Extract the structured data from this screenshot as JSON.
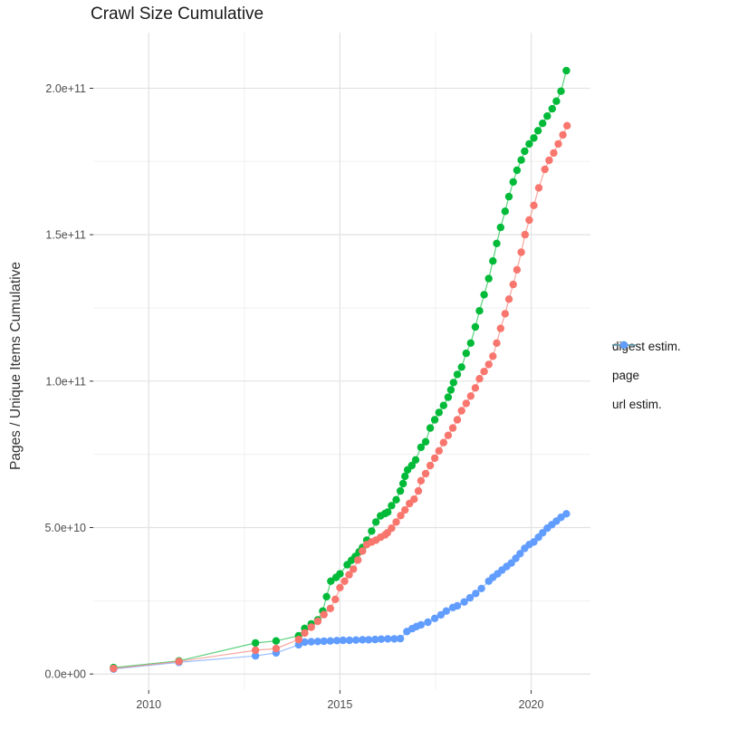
{
  "chart_data": {
    "type": "line",
    "title": "Crawl Size Cumulative",
    "legend_position": "right",
    "x_axis": {
      "ticks": [
        {
          "v": 2010,
          "label": "2010"
        },
        {
          "v": 2015,
          "label": "2015"
        },
        {
          "v": 2020,
          "label": "2020"
        }
      ],
      "minor": [
        2012.5,
        2017.5
      ],
      "range": [
        2008.55,
        2021.55
      ]
    },
    "y_axis": {
      "title": "Pages / Unique Items Cumulative",
      "unit_multiplier": 1000000000.0,
      "ticks": [
        {
          "v": 0,
          "label": "0.0e+00"
        },
        {
          "v": 50,
          "label": "5.0e+10"
        },
        {
          "v": 100,
          "label": "1.0e+11"
        },
        {
          "v": 150,
          "label": "1.5e+11"
        },
        {
          "v": 200,
          "label": "2.0e+11"
        }
      ],
      "minor": [
        25,
        75,
        125,
        175
      ],
      "range": [
        -5.5,
        219
      ]
    },
    "series": [
      {
        "name": "digest estim.",
        "color": "#F8766D",
        "points": [
          [
            2009.08,
            1.9
          ],
          [
            2010.79,
            4.3
          ],
          [
            2012.79,
            8.1
          ],
          [
            2013.33,
            8.7
          ],
          [
            2013.92,
            11.8
          ],
          [
            2014.08,
            14.0
          ],
          [
            2014.25,
            16.0
          ],
          [
            2014.42,
            18.0
          ],
          [
            2014.58,
            20.3
          ],
          [
            2014.75,
            22.4
          ],
          [
            2014.88,
            25.5
          ],
          [
            2015.0,
            29.5
          ],
          [
            2015.12,
            31.7
          ],
          [
            2015.24,
            33.9
          ],
          [
            2015.35,
            35.8
          ],
          [
            2015.47,
            38.9
          ],
          [
            2015.59,
            42.0
          ],
          [
            2015.7,
            44.2
          ],
          [
            2015.83,
            45.1
          ],
          [
            2015.94,
            45.7
          ],
          [
            2016.06,
            46.7
          ],
          [
            2016.18,
            47.5
          ],
          [
            2016.24,
            48.2
          ],
          [
            2016.35,
            49.8
          ],
          [
            2016.47,
            51.9
          ],
          [
            2016.59,
            54.1
          ],
          [
            2016.7,
            56.0
          ],
          [
            2016.82,
            58.2
          ],
          [
            2016.94,
            59.7
          ],
          [
            2017.05,
            62.5
          ],
          [
            2017.12,
            66.0
          ],
          [
            2017.24,
            68.4
          ],
          [
            2017.36,
            71.2
          ],
          [
            2017.48,
            73.7
          ],
          [
            2017.59,
            76.2
          ],
          [
            2017.71,
            79.0
          ],
          [
            2017.83,
            81.5
          ],
          [
            2017.95,
            84.0
          ],
          [
            2018.07,
            86.8
          ],
          [
            2018.18,
            89.9
          ],
          [
            2018.3,
            92.4
          ],
          [
            2018.42,
            94.9
          ],
          [
            2018.54,
            97.7
          ],
          [
            2018.65,
            100.8
          ],
          [
            2018.77,
            103.3
          ],
          [
            2018.89,
            105.7
          ],
          [
            2019.0,
            108.5
          ],
          [
            2019.1,
            113.0
          ],
          [
            2019.2,
            118.0
          ],
          [
            2019.32,
            123.0
          ],
          [
            2019.42,
            128.0
          ],
          [
            2019.53,
            133.0
          ],
          [
            2019.63,
            138.0
          ],
          [
            2019.74,
            144.0
          ],
          [
            2019.84,
            150.0
          ],
          [
            2019.95,
            155.0
          ],
          [
            2020.07,
            160.0
          ],
          [
            2020.2,
            166.0
          ],
          [
            2020.36,
            172.3
          ],
          [
            2020.47,
            175.4
          ],
          [
            2020.59,
            177.9
          ],
          [
            2020.71,
            181.0
          ],
          [
            2020.83,
            184.1
          ],
          [
            2020.94,
            187.2
          ]
        ]
      },
      {
        "name": "page",
        "color": "#00BA38",
        "points": [
          [
            2009.08,
            2.2
          ],
          [
            2010.79,
            4.5
          ],
          [
            2012.79,
            10.6
          ],
          [
            2013.33,
            11.3
          ],
          [
            2013.92,
            13.1
          ],
          [
            2014.08,
            15.6
          ],
          [
            2014.25,
            17.1
          ],
          [
            2014.42,
            18.5
          ],
          [
            2014.55,
            21.5
          ],
          [
            2014.65,
            26.4
          ],
          [
            2014.76,
            31.7
          ],
          [
            2014.9,
            33.0
          ],
          [
            2015.0,
            34.2
          ],
          [
            2015.19,
            37.3
          ],
          [
            2015.3,
            38.8
          ],
          [
            2015.4,
            40.1
          ],
          [
            2015.5,
            41.7
          ],
          [
            2015.59,
            43.2
          ],
          [
            2015.7,
            45.7
          ],
          [
            2015.83,
            48.8
          ],
          [
            2015.94,
            51.9
          ],
          [
            2016.06,
            54.0
          ],
          [
            2016.18,
            54.8
          ],
          [
            2016.25,
            55.3
          ],
          [
            2016.35,
            57.5
          ],
          [
            2016.47,
            59.5
          ],
          [
            2016.58,
            62.5
          ],
          [
            2016.65,
            65.0
          ],
          [
            2016.7,
            67.5
          ],
          [
            2016.77,
            69.7
          ],
          [
            2016.88,
            71.2
          ],
          [
            2016.98,
            73.1
          ],
          [
            2017.12,
            77.4
          ],
          [
            2017.24,
            79.3
          ],
          [
            2017.36,
            84.0
          ],
          [
            2017.48,
            86.8
          ],
          [
            2017.59,
            89.3
          ],
          [
            2017.71,
            91.7
          ],
          [
            2017.83,
            94.5
          ],
          [
            2017.9,
            97.0
          ],
          [
            2017.97,
            99.5
          ],
          [
            2018.07,
            102.3
          ],
          [
            2018.18,
            104.8
          ],
          [
            2018.3,
            109.5
          ],
          [
            2018.42,
            113.0
          ],
          [
            2018.54,
            118.5
          ],
          [
            2018.65,
            124.0
          ],
          [
            2018.77,
            129.5
          ],
          [
            2018.89,
            135.0
          ],
          [
            2019.0,
            141.0
          ],
          [
            2019.1,
            147.0
          ],
          [
            2019.2,
            152.5
          ],
          [
            2019.32,
            158.0
          ],
          [
            2019.42,
            163.0
          ],
          [
            2019.53,
            168.0
          ],
          [
            2019.63,
            172.0
          ],
          [
            2019.74,
            175.5
          ],
          [
            2019.83,
            178.5
          ],
          [
            2019.95,
            181.0
          ],
          [
            2020.07,
            183.0
          ],
          [
            2020.18,
            185.5
          ],
          [
            2020.3,
            188.0
          ],
          [
            2020.42,
            190.5
          ],
          [
            2020.55,
            193.0
          ],
          [
            2020.66,
            195.6
          ],
          [
            2020.78,
            199.0
          ],
          [
            2020.92,
            206.0
          ]
        ]
      },
      {
        "name": "url estim.",
        "color": "#619CFF",
        "points": [
          [
            2009.08,
            1.7
          ],
          [
            2010.79,
            4.0
          ],
          [
            2012.79,
            6.2
          ],
          [
            2013.33,
            7.2
          ],
          [
            2013.92,
            10.0
          ],
          [
            2014.08,
            10.9
          ],
          [
            2014.25,
            11.0
          ],
          [
            2014.42,
            11.1
          ],
          [
            2014.58,
            11.2
          ],
          [
            2014.75,
            11.3
          ],
          [
            2014.92,
            11.4
          ],
          [
            2015.08,
            11.5
          ],
          [
            2015.25,
            11.5
          ],
          [
            2015.42,
            11.6
          ],
          [
            2015.59,
            11.7
          ],
          [
            2015.75,
            11.7
          ],
          [
            2015.92,
            11.8
          ],
          [
            2016.08,
            11.9
          ],
          [
            2016.25,
            12.0
          ],
          [
            2016.42,
            12.0
          ],
          [
            2016.58,
            12.1
          ],
          [
            2016.75,
            14.5
          ],
          [
            2016.89,
            15.5
          ],
          [
            2017.0,
            16.2
          ],
          [
            2017.12,
            16.8
          ],
          [
            2017.3,
            17.7
          ],
          [
            2017.48,
            19.0
          ],
          [
            2017.64,
            20.2
          ],
          [
            2017.78,
            21.5
          ],
          [
            2017.95,
            22.7
          ],
          [
            2018.07,
            23.3
          ],
          [
            2018.25,
            24.6
          ],
          [
            2018.4,
            26.0
          ],
          [
            2018.55,
            27.5
          ],
          [
            2018.7,
            29.2
          ],
          [
            2018.89,
            31.7
          ],
          [
            2019.0,
            33.0
          ],
          [
            2019.12,
            34.2
          ],
          [
            2019.24,
            35.5
          ],
          [
            2019.36,
            36.7
          ],
          [
            2019.48,
            37.9
          ],
          [
            2019.6,
            39.5
          ],
          [
            2019.71,
            41.1
          ],
          [
            2019.83,
            42.9
          ],
          [
            2019.95,
            44.2
          ],
          [
            2020.07,
            45.1
          ],
          [
            2020.19,
            46.7
          ],
          [
            2020.3,
            48.2
          ],
          [
            2020.42,
            49.8
          ],
          [
            2020.54,
            51.0
          ],
          [
            2020.66,
            52.2
          ],
          [
            2020.78,
            53.5
          ],
          [
            2020.92,
            54.7
          ]
        ]
      }
    ]
  }
}
